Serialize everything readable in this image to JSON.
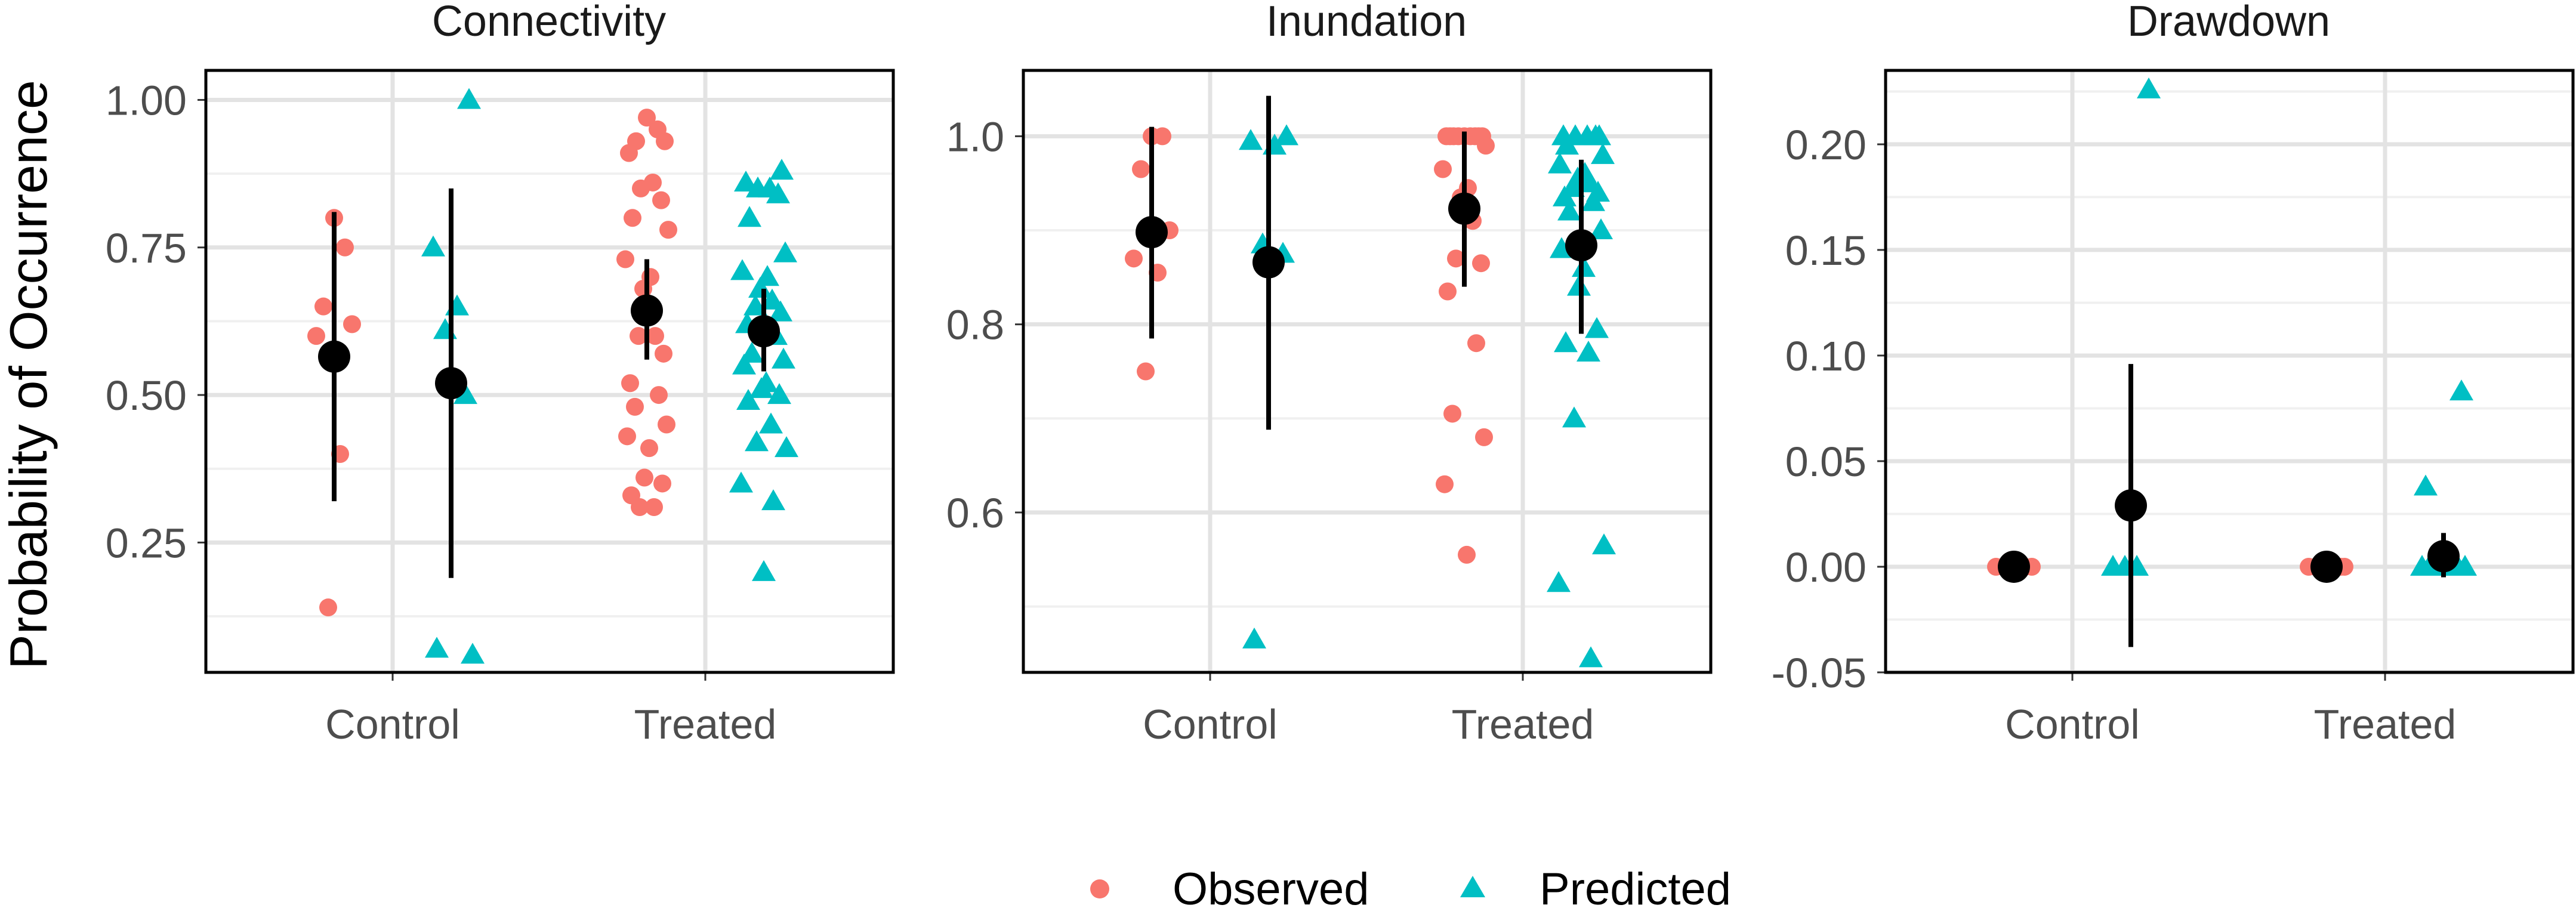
{
  "chart_data": {
    "type": "scatter",
    "ylabel": "Probability of Occurrence",
    "colors": {
      "observed": "#F8766D",
      "predicted": "#00BFC4",
      "summary": "#000000"
    },
    "legend": {
      "position": "bottom",
      "entries": [
        {
          "name": "Observed",
          "shape": "circle",
          "color": "#F8766D"
        },
        {
          "name": "Predicted",
          "shape": "triangle",
          "color": "#00BFC4"
        }
      ]
    },
    "categories": [
      "Control",
      "Treated"
    ],
    "panels": [
      {
        "title": "Connectivity",
        "ylim": [
          0.03,
          1.05
        ],
        "yticks": [
          "1.00",
          "0.75",
          "0.50",
          "0.25"
        ],
        "ytick_values": [
          1.0,
          0.75,
          0.5,
          0.25
        ],
        "observed": {
          "Control": [
            0.8,
            0.75,
            0.65,
            0.62,
            0.6,
            0.4,
            0.14
          ],
          "Treated": [
            0.97,
            0.95,
            0.93,
            0.93,
            0.91,
            0.86,
            0.85,
            0.83,
            0.8,
            0.78,
            0.73,
            0.7,
            0.68,
            0.6,
            0.6,
            0.57,
            0.52,
            0.5,
            0.48,
            0.45,
            0.43,
            0.41,
            0.36,
            0.35,
            0.33,
            0.31,
            0.31
          ]
        },
        "predicted": {
          "Control": [
            1.0,
            0.75,
            0.65,
            0.61,
            0.5,
            0.07,
            0.06
          ],
          "Treated": [
            0.88,
            0.86,
            0.85,
            0.85,
            0.84,
            0.8,
            0.74,
            0.71,
            0.7,
            0.68,
            0.66,
            0.65,
            0.64,
            0.62,
            0.6,
            0.57,
            0.56,
            0.55,
            0.52,
            0.51,
            0.5,
            0.49,
            0.45,
            0.42,
            0.41,
            0.35,
            0.32,
            0.2
          ]
        },
        "summary": {
          "observed": {
            "Control": {
              "mean": 0.565,
              "low": 0.32,
              "high": 0.81
            },
            "Treated": {
              "mean": 0.643,
              "low": 0.56,
              "high": 0.73
            }
          },
          "predicted": {
            "Control": {
              "mean": 0.52,
              "low": 0.19,
              "high": 0.85
            },
            "Treated": {
              "mean": 0.608,
              "low": 0.54,
              "high": 0.68
            }
          }
        }
      },
      {
        "title": "Inundation",
        "ylim": [
          0.43,
          1.07
        ],
        "yticks": [
          "1.0",
          "0.8",
          "0.6"
        ],
        "ytick_values": [
          1.0,
          0.8,
          0.6
        ],
        "observed": {
          "Control": [
            1.0,
            1.0,
            0.965,
            0.9,
            0.87,
            0.855,
            0.75
          ],
          "Treated": [
            1.0,
            1.0,
            1.0,
            1.0,
            1.0,
            1.0,
            1.0,
            1.0,
            1.0,
            0.99,
            0.965,
            0.945,
            0.935,
            0.91,
            0.87,
            0.865,
            0.835,
            0.78,
            0.705,
            0.68,
            0.63,
            0.555
          ]
        },
        "predicted": {
          "Control": [
            1.0,
            0.995,
            0.99,
            0.885,
            0.875,
            0.465
          ],
          "Treated": [
            1.0,
            1.0,
            1.0,
            1.0,
            1.0,
            0.99,
            0.98,
            0.97,
            0.96,
            0.955,
            0.95,
            0.945,
            0.94,
            0.935,
            0.93,
            0.92,
            0.9,
            0.88,
            0.86,
            0.84,
            0.795,
            0.78,
            0.77,
            0.7,
            0.565,
            0.525,
            0.445
          ]
        },
        "summary": {
          "observed": {
            "Control": {
              "mean": 0.898,
              "low": 0.785,
              "high": 1.01
            },
            "Treated": {
              "mean": 0.923,
              "low": 0.84,
              "high": 1.005
            }
          },
          "predicted": {
            "Control": {
              "mean": 0.866,
              "low": 0.688,
              "high": 1.043
            },
            "Treated": {
              "mean": 0.884,
              "low": 0.79,
              "high": 0.975
            }
          }
        }
      },
      {
        "title": "Drawdown",
        "ylim": [
          -0.05,
          0.235
        ],
        "yticks": [
          "0.20",
          "0.15",
          "0.10",
          "0.05",
          "0.00",
          "-0.05"
        ],
        "ytick_values": [
          0.2,
          0.15,
          0.1,
          0.05,
          0.0,
          -0.05
        ],
        "observed": {
          "Control": [
            0.0,
            0.0,
            0.0,
            0.0,
            0.0,
            0.0,
            0.0
          ],
          "Treated": [
            0.0,
            0.0,
            0.0,
            0.0,
            0.0,
            0.0,
            0.0,
            0.0
          ]
        },
        "predicted": {
          "Control": [
            0.226,
            0.0,
            0.0,
            0.0
          ],
          "Treated": [
            0.083,
            0.038,
            0.0,
            0.0,
            0.0,
            0.0,
            0.0,
            0.0
          ]
        },
        "summary": {
          "observed": {
            "Control": {
              "mean": 0.0,
              "low": 0.0,
              "high": 0.0
            },
            "Treated": {
              "mean": 0.0,
              "low": 0.0,
              "high": 0.0
            }
          },
          "predicted": {
            "Control": {
              "mean": 0.029,
              "low": -0.038,
              "high": 0.096
            },
            "Treated": {
              "mean": 0.005,
              "low": -0.005,
              "high": 0.016
            }
          }
        }
      }
    ]
  }
}
